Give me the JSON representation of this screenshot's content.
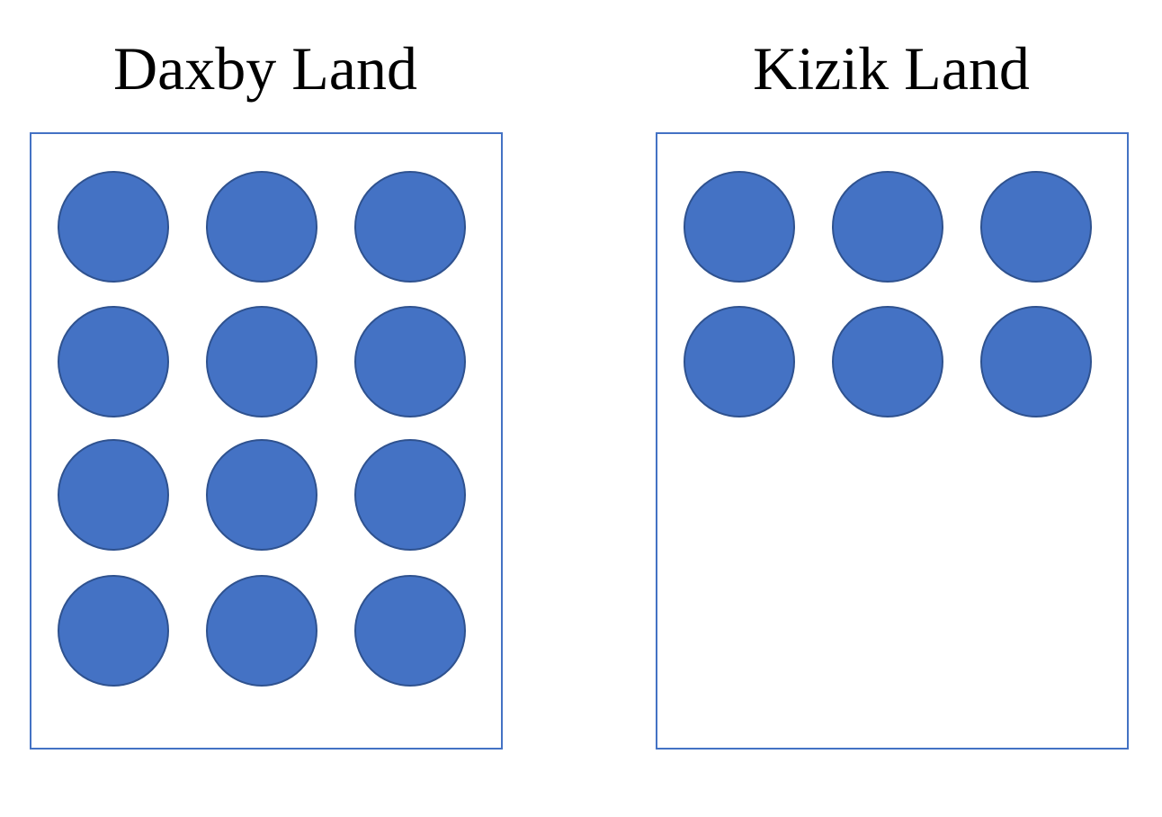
{
  "panels": [
    {
      "title": "Daxby Land",
      "dot_count": 12,
      "columns": 3
    },
    {
      "title": "Kizik Land",
      "dot_count": 6,
      "columns": 3
    }
  ],
  "colors": {
    "dot_fill": "#4472C4",
    "dot_outline": "#2F528F",
    "box_border": "#4472C4",
    "text": "#000000",
    "background": "#FFFFFF"
  }
}
